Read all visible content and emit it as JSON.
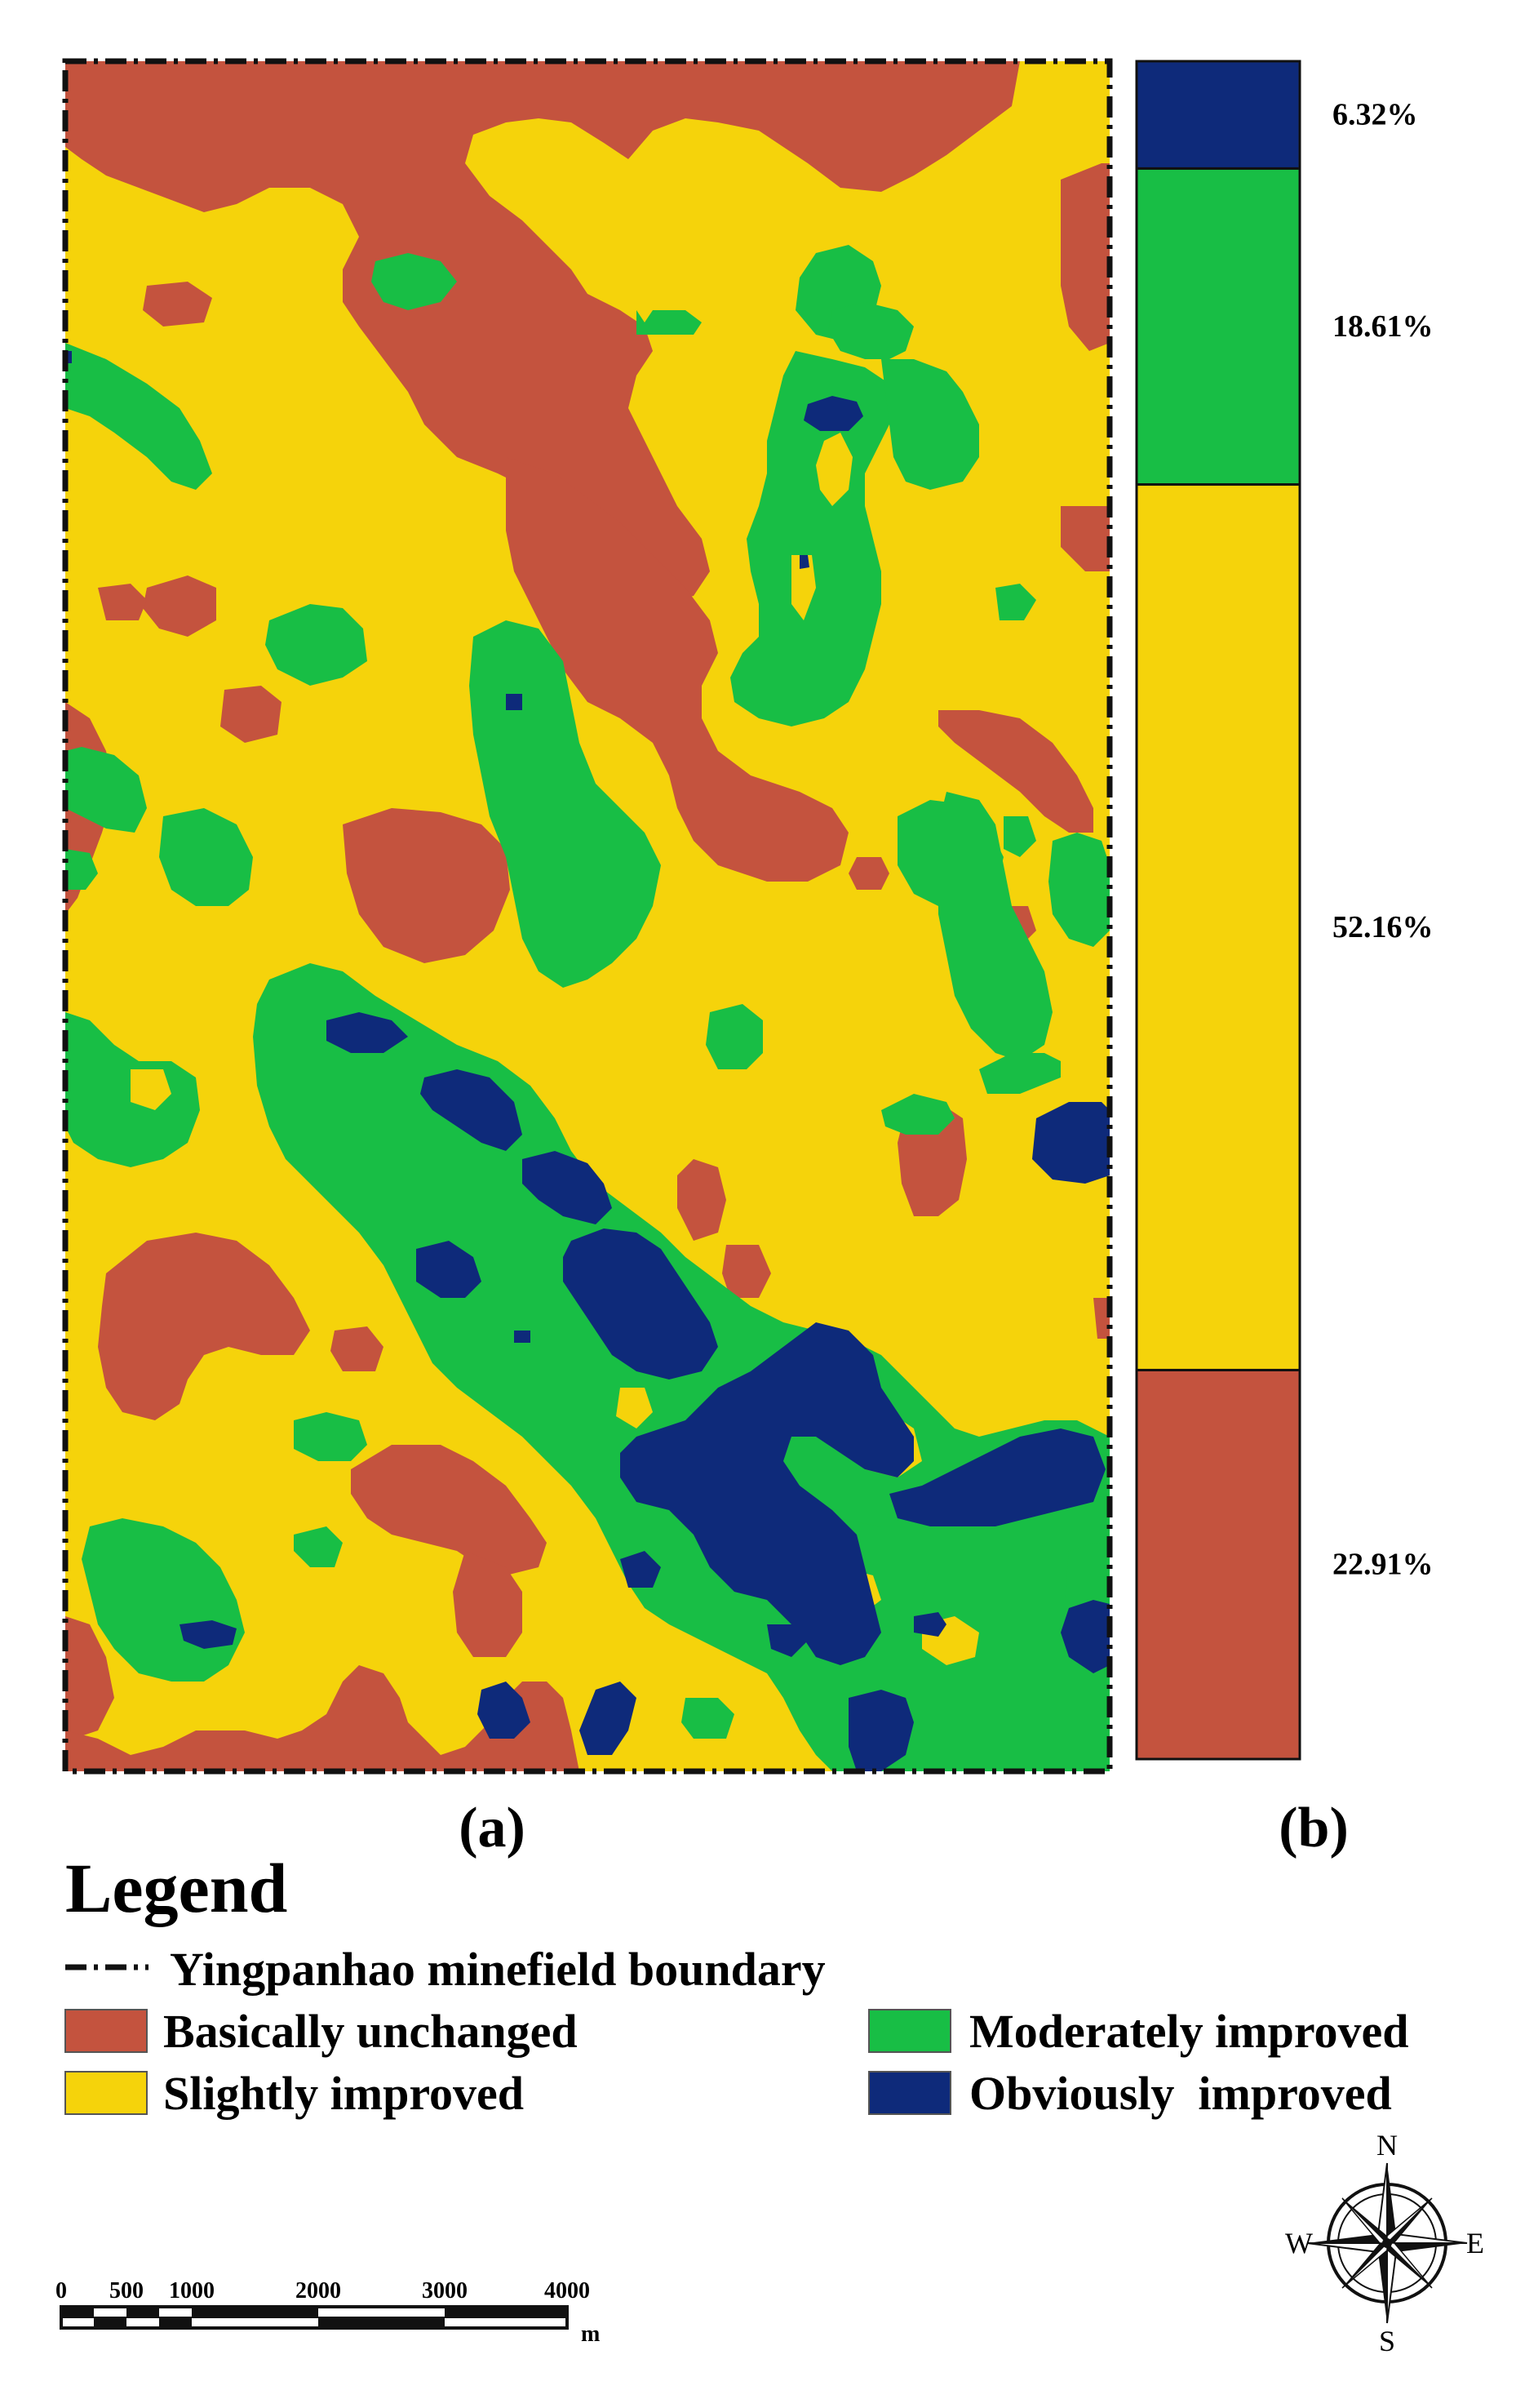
{
  "colors": {
    "basically_unchanged": "#C4533E",
    "slightly_improved": "#F5D30B",
    "moderately_improved": "#18BE45",
    "obviously_improved": "#0E2A7A",
    "boundary": "#111111"
  },
  "panels": {
    "a_label": "(a)",
    "b_label": "(b)"
  },
  "bar": {
    "segments": [
      {
        "category": "Obviously improved",
        "value": 6.32,
        "label": "6.32%"
      },
      {
        "category": "Moderately improved",
        "value": 18.61,
        "label": "18.61%"
      },
      {
        "category": "Slightly improved",
        "value": 52.16,
        "label": "52.16%"
      },
      {
        "category": "Basically unchanged",
        "value": 22.91,
        "label": "22.91%"
      }
    ]
  },
  "legend": {
    "title": "Legend",
    "boundary_label": "Yingpanhao minefield boundary",
    "items": [
      {
        "label": "Basically unchanged",
        "color": "#C4533E"
      },
      {
        "label": "Slightly improved",
        "color": "#F5D30B"
      },
      {
        "label": "Moderately improved",
        "color": "#18BE45"
      },
      {
        "label": "Obviously  improved",
        "color": "#0E2A7A"
      }
    ]
  },
  "scale_bar": {
    "ticks": [
      "0",
      "500",
      "1000",
      "2000",
      "3000",
      "4000"
    ],
    "unit": "m"
  },
  "compass": {
    "n": "N",
    "s": "S",
    "e": "E",
    "w": "W"
  }
}
